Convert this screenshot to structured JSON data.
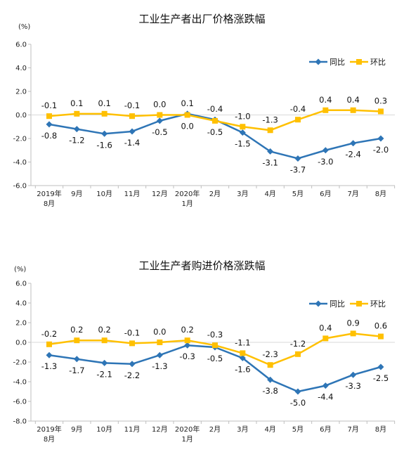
{
  "chart_data": [
    {
      "type": "line",
      "title": "工业生产者出厂价格涨跌幅",
      "unit": "(%)",
      "categories": [
        [
          "2019年",
          "8月"
        ],
        [
          "9月"
        ],
        [
          "10月"
        ],
        [
          "11月"
        ],
        [
          "12月"
        ],
        [
          "2020年",
          "1月"
        ],
        [
          "2月"
        ],
        [
          "3月"
        ],
        [
          "4月"
        ],
        [
          "5月"
        ],
        [
          "6月"
        ],
        [
          "7月"
        ],
        [
          "8月"
        ]
      ],
      "yticks": [
        "6.0",
        "4.0",
        "2.0",
        "0.0",
        "-2.0",
        "-4.0",
        "-6.0"
      ],
      "ylim": [
        -6,
        6
      ],
      "legend_position": "top-right",
      "series": [
        {
          "name": "同比",
          "color": "#2e75b6",
          "marker": "diamond",
          "values": [
            -0.8,
            -1.2,
            -1.6,
            -1.4,
            -0.5,
            0.1,
            -0.4,
            -1.5,
            -3.1,
            -3.7,
            -3.0,
            -2.4,
            -2.0
          ],
          "labels": [
            "-0.8",
            "-1.2",
            "-1.6",
            "-1.4",
            "-0.5",
            "0.1",
            "-0.4",
            "-1.5",
            "-3.1",
            "-3.7",
            "-3.0",
            "-2.4",
            "-2.0"
          ]
        },
        {
          "name": "环比",
          "color": "#ffc000",
          "marker": "square",
          "values": [
            -0.1,
            0.1,
            0.1,
            -0.1,
            0.0,
            0.0,
            -0.5,
            -1.0,
            -1.3,
            -0.4,
            0.4,
            0.4,
            0.3
          ],
          "labels": [
            "-0.1",
            "0.1",
            "0.1",
            "-0.1",
            "0.0",
            "0.0",
            "-0.5",
            "-1.0",
            "-1.3",
            "-0.4",
            "0.4",
            "0.4",
            "0.3"
          ]
        }
      ]
    },
    {
      "type": "line",
      "title": "工业生产者购进价格涨跌幅",
      "unit": "(%)",
      "categories": [
        [
          "2019年",
          "8月"
        ],
        [
          "9月"
        ],
        [
          "10月"
        ],
        [
          "11月"
        ],
        [
          "12月"
        ],
        [
          "2020年",
          "1月"
        ],
        [
          "2月"
        ],
        [
          "3月"
        ],
        [
          "4月"
        ],
        [
          "5月"
        ],
        [
          "6月"
        ],
        [
          "7月"
        ],
        [
          "8月"
        ]
      ],
      "yticks": [
        "6.0",
        "4.0",
        "2.0",
        "0.0",
        "-2.0",
        "-4.0",
        "-6.0",
        "-8.0"
      ],
      "ylim": [
        -8,
        6
      ],
      "legend_position": "top-right",
      "series": [
        {
          "name": "同比",
          "color": "#2e75b6",
          "marker": "diamond",
          "values": [
            -1.3,
            -1.7,
            -2.1,
            -2.2,
            -1.3,
            -0.3,
            -0.5,
            -1.6,
            -3.8,
            -5.0,
            -4.4,
            -3.3,
            -2.5
          ],
          "labels": [
            "-1.3",
            "-1.7",
            "-2.1",
            "-2.2",
            "-1.3",
            "-0.3",
            "-0.5",
            "-1.6",
            "-3.8",
            "-5.0",
            "-4.4",
            "-3.3",
            "-2.5"
          ]
        },
        {
          "name": "环比",
          "color": "#ffc000",
          "marker": "square",
          "values": [
            -0.2,
            0.2,
            0.2,
            -0.1,
            0.0,
            0.2,
            -0.3,
            -1.1,
            -2.3,
            -1.2,
            0.4,
            0.9,
            0.6
          ],
          "labels": [
            "-0.2",
            "0.2",
            "0.2",
            "-0.1",
            "0.0",
            "0.2",
            "-0.3",
            "-1.1",
            "-2.3",
            "-1.2",
            "0.4",
            "0.9",
            "0.6"
          ]
        }
      ]
    }
  ]
}
